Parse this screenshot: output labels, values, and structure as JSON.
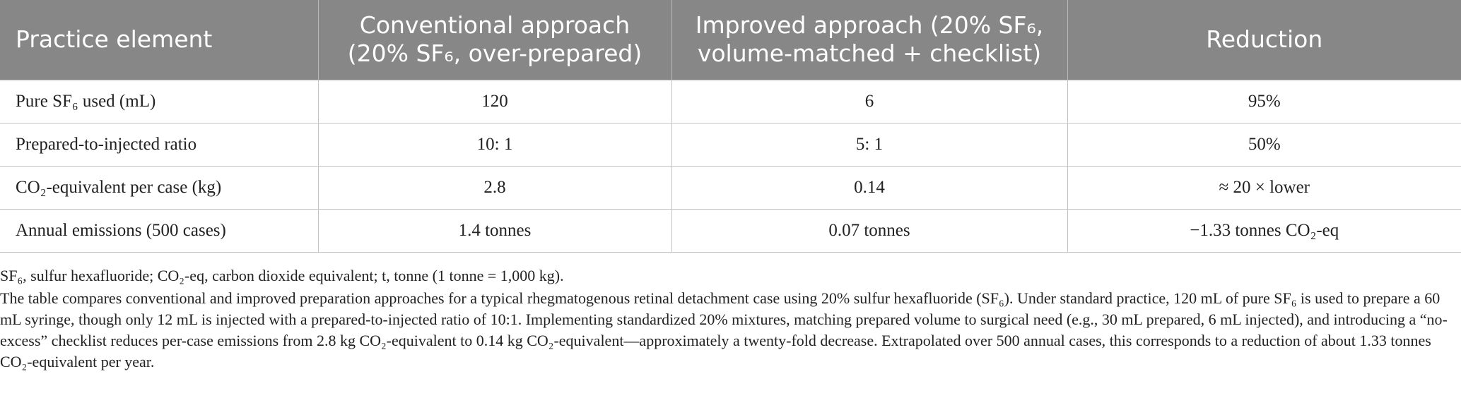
{
  "table": {
    "headers": [
      "Practice element",
      "Conventional approach (20% SF₆, over-prepared)",
      "Improved approach (20% SF₆, volume-matched + checklist)",
      "Reduction"
    ],
    "rows": [
      [
        "Pure SF₆ used (mL)",
        "120",
        "6",
        "95%"
      ],
      [
        "Prepared-to-injected ratio",
        "10: 1",
        "5: 1",
        "50%"
      ],
      [
        "CO₂-equivalent per case (kg)",
        "2.8",
        "0.14",
        "≈ 20 × lower"
      ],
      [
        "Annual emissions (500 cases)",
        "1.4 tonnes",
        "0.07 tonnes",
        "−1.33 tonnes CO₂-eq"
      ]
    ]
  },
  "footnotes": {
    "abbreviations": "SF₆, sulfur hexafluoride; CO₂-eq, carbon dioxide equivalent; t, tonne (1 tonne = 1,000 kg).",
    "description": "The table compares conventional and improved preparation approaches for a typical rhegmatogenous retinal detachment case using 20% sulfur hexafluoride (SF₆). Under standard practice, 120 mL of pure SF₆ is used to prepare a 60 mL syringe, though only 12 mL is injected with a prepared-to-injected ratio of 10:1. Implementing standardized 20% mixtures, matching prepared volume to surgical need (e.g., 30 mL prepared, 6 mL injected), and introducing a “no-excess” checklist reduces per-case emissions from 2.8 kg CO₂-equivalent to 0.14 kg CO₂-equivalent—approximately a twenty-fold decrease. Extrapolated over 500 annual cases, this corresponds to a reduction of about 1.33 tonnes CO₂-equivalent per year."
  }
}
